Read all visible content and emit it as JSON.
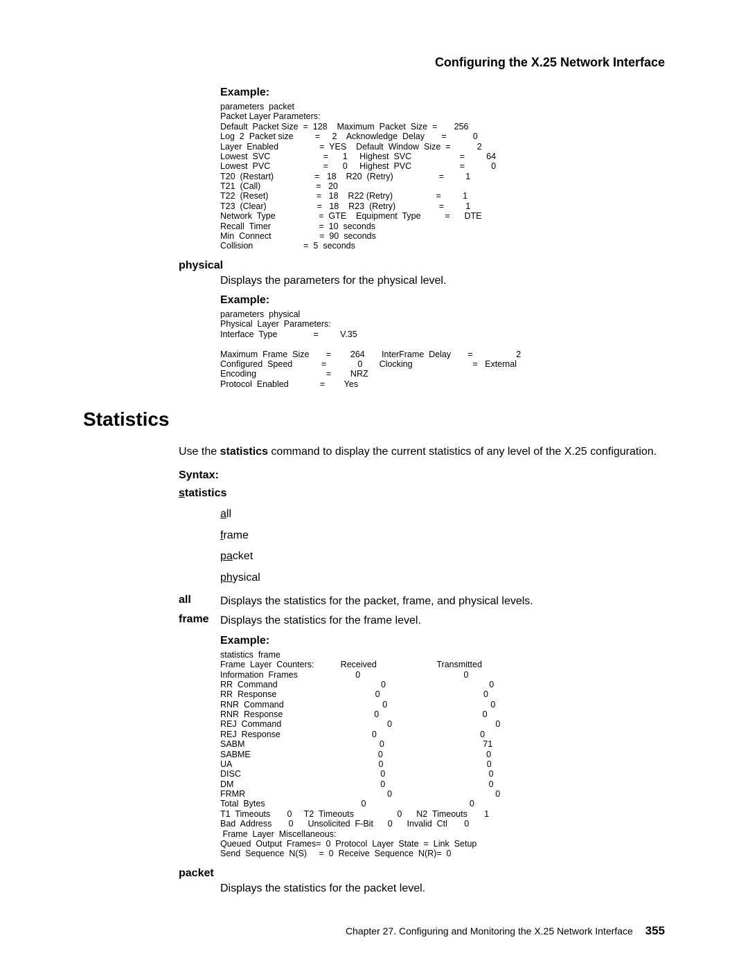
{
  "header": {
    "title": "Configuring the X.25 Network Interface"
  },
  "example1": {
    "heading": "Example:",
    "code": "parameters  packet\nPacket Layer Parameters:\nDefault  Packet Size  =  128    Maximum  Packet  Size  =       256\nLog  2  Packet size         =     2    Acknowledge  Delay       =           0\nLayer  Enabled                 =  YES    Default  Window  Size  =           2\nLowest  SVC                      =      1     Highest  SVC                    =         64\nLowest  PVC                      =      0     Highest  PVC                    =           0\nT20  (Restart)                 =   18    R20  (Retry)                   =         1\nT21  (Call)                       =   20\nT22  (Reset)                    =   18    R22 (Retry)                  =         1\nT23  (Clear)                     =   18    R23  (Retry)                  =         1\nNetwork  Type                  =  GTE    Equipment  Type          =      DTE\nRecall  Timer                    =  10  seconds\nMin  Connect                    =  90  seconds\nCollision                     =  5  seconds"
  },
  "physical": {
    "label": "physical",
    "desc": "Displays the parameters for the physical level."
  },
  "example2": {
    "heading": "Example:",
    "code": "parameters  physical\nPhysical  Layer  Parameters:\nInterface  Type               =         V.35\n\nMaximum  Frame  Size       =        264       InterFrame  Delay       =                  2\nConfigured  Speed            =             0       Clocking                         =   External\nEncoding                             =        NRZ\nProtocol  Enabled             =        Yes"
  },
  "statistics": {
    "heading": "Statistics",
    "intro_pre": "Use the ",
    "intro_bold": "statistics",
    "intro_post": " command to display the current statistics of any level of the X.25 configuration.",
    "syntax": "Syntax:",
    "cmd_u": "s",
    "cmd_rest": "tatistics",
    "opts": {
      "all_u": "a",
      "all_rest": "ll",
      "frame_u": "f",
      "frame_rest": "rame",
      "packet_u": "pa",
      "packet_rest": "cket",
      "physical_u": "ph",
      "physical_rest": "ysical"
    },
    "all_key": "all",
    "all_desc": "Displays the statistics for the packet, frame, and physical levels.",
    "frame_key": "frame",
    "frame_desc": "Displays the statistics for the frame level."
  },
  "example3": {
    "heading": "Example:",
    "code": "statistics  frame\nFrame  Layer  Counters:           Received                         Transmitted\nInformation  Frames                        0                                           0\nRR  Command                                           0                                           0\nRR  Response                                         0                                           0\nRNR  Command                                         0                                           0\nRNR  Response                                      0                                           0\nREJ  Command                                            0                                           0\nREJ  Response                                      0                                           0\nSABM                                                        0                                         71\nSABME                                                     0                                           0\nUA                                                             0                                           0\nDISC                                                          0                                           0\nDM                                                             0                                           0\nFRMR                                                           0                                           0\nTotal  Bytes                                        0                                           0\nT1  Timeouts       0     T2  Timeouts                  0      N2  Timeouts       1\nBad  Address       0      Unsolicited  F-Bit      0      Invalid  Ctl       0\n Frame  Layer  Miscellaneous:\nQueued  Output  Frames=  0  Protocol  Layer  State  =  Link  Setup\nSend  Sequence  N(S)     =  0  Receive  Sequence  N(R)=  0"
  },
  "packet": {
    "label": "packet",
    "desc": "Displays the statistics for the packet level."
  },
  "footer": {
    "chapter": "Chapter 27. Configuring and Monitoring the X.25 Network Interface",
    "page": "355"
  }
}
